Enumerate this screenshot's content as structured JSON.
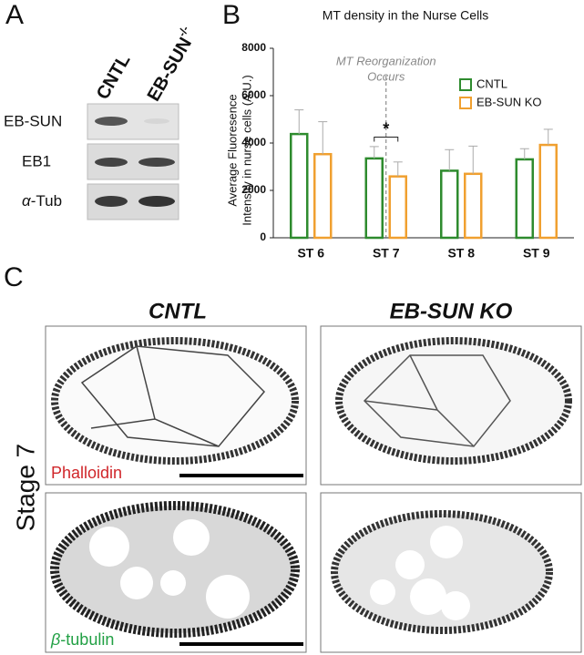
{
  "panel_labels": [
    "A",
    "B",
    "C"
  ],
  "blot": {
    "columns": [
      {
        "text": "CNTL"
      },
      {
        "text": "EB-SUN",
        "superscript": "-/-"
      }
    ],
    "rows": [
      {
        "text": "EB-SUN"
      },
      {
        "text": "EB1"
      },
      {
        "symbol": "α",
        "text": "-Tub"
      }
    ]
  },
  "chart_data": {
    "type": "bar",
    "title": "MT density in the Nurse Cells",
    "ylabel": [
      "Average Fluoresence",
      "Intensity in nurse cells (A.U.)"
    ],
    "categories": [
      "ST 6",
      "ST 7",
      "ST 8",
      "ST 9"
    ],
    "series": [
      {
        "name": "CNTL",
        "color": "#2e8b2e",
        "values": [
          4380,
          3350,
          2830,
          3310
        ],
        "errors": [
          1020,
          500,
          890,
          450
        ]
      },
      {
        "name": "EB-SUN KO",
        "color": "#f0a030",
        "values": [
          3530,
          2590,
          2700,
          3920
        ],
        "errors": [
          1370,
          610,
          1170,
          660
        ]
      }
    ],
    "ylim": [
      0,
      8000
    ],
    "yticks": [
      0,
      2000,
      4000,
      6000,
      8000
    ],
    "grid": false,
    "legend": "upper-right",
    "annotation": [
      "MT Reorganization",
      "Occurs"
    ],
    "significance": "*"
  },
  "images": {
    "columns": [
      "CNTL",
      "EB-SUN KO"
    ],
    "row_label": "Stage 7",
    "stains": [
      {
        "text": "Phalloidin",
        "color": "#d0262a"
      },
      {
        "symbol": "β",
        "text": "-tubulin",
        "color": "#22a045"
      }
    ]
  }
}
